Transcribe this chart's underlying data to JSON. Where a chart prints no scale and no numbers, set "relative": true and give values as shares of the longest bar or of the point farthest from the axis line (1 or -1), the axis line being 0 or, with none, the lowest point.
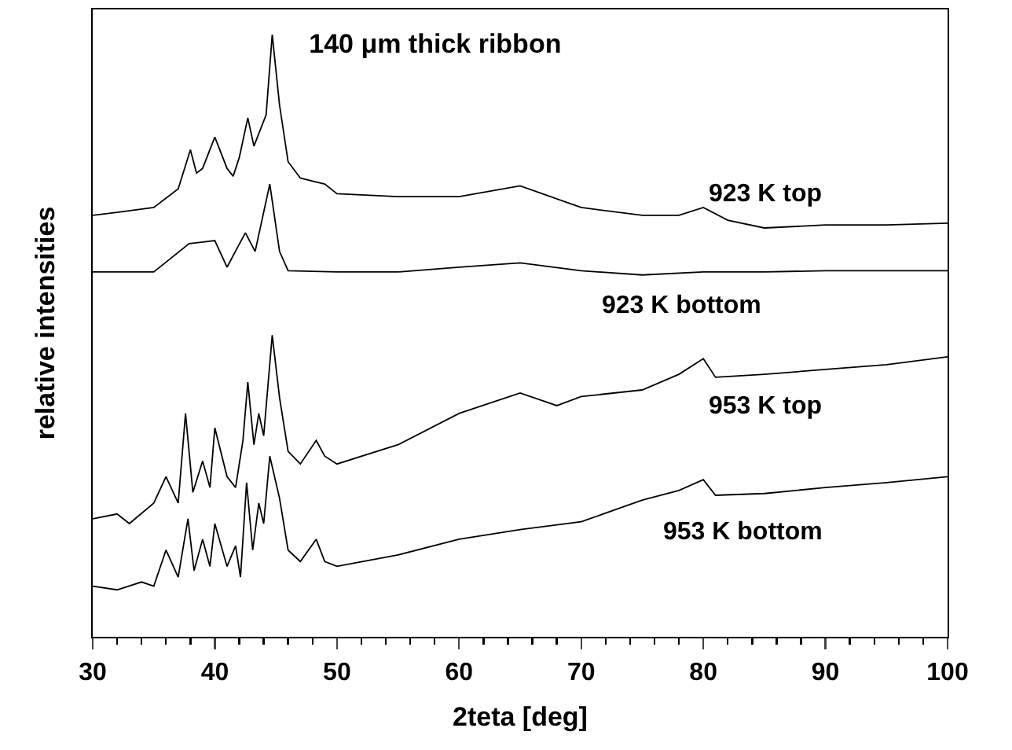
{
  "chart_data": {
    "type": "line",
    "title": "140 μm thick ribbon",
    "xlabel": "2teta [deg]",
    "ylabel": "relative intensities",
    "relative": true,
    "legend": false,
    "grid": false,
    "marker": "none",
    "line_style": "solid",
    "xlim": [
      30,
      100
    ],
    "xticks": [
      30,
      40,
      50,
      60,
      70,
      80,
      90,
      100
    ],
    "series": [
      {
        "name": "923 K top",
        "color": "#000000",
        "x": [
          30,
          32,
          35,
          37,
          38,
          38.5,
          39,
          40,
          41,
          41.5,
          42,
          42.7,
          43.2,
          43.7,
          44.2,
          44.7,
          45.3,
          46,
          47,
          48,
          49,
          50,
          55,
          60,
          65,
          70,
          75,
          78,
          80,
          82,
          85,
          90,
          95,
          100
        ],
        "values": [
          0.7,
          0.705,
          0.713,
          0.744,
          0.809,
          0.77,
          0.778,
          0.83,
          0.778,
          0.765,
          0.796,
          0.862,
          0.815,
          0.841,
          0.867,
          1.0,
          0.883,
          0.789,
          0.762,
          0.757,
          0.752,
          0.736,
          0.731,
          0.731,
          0.749,
          0.713,
          0.7,
          0.7,
          0.713,
          0.692,
          0.679,
          0.684,
          0.684,
          0.687
        ]
      },
      {
        "name": "923 K bottom",
        "color": "#000000",
        "x": [
          30,
          35,
          37.9,
          40,
          41,
          42.5,
          43.3,
          44.5,
          45.3,
          46,
          50,
          55,
          60,
          65,
          70,
          75,
          80,
          85,
          90,
          100
        ],
        "values": [
          0.606,
          0.606,
          0.653,
          0.658,
          0.614,
          0.671,
          0.64,
          0.752,
          0.64,
          0.608,
          0.606,
          0.606,
          0.614,
          0.621,
          0.608,
          0.601,
          0.606,
          0.606,
          0.608,
          0.608
        ]
      },
      {
        "name": "953 K top",
        "color": "#000000",
        "x": [
          30,
          32,
          33,
          35,
          36,
          37,
          37.6,
          38.2,
          39,
          39.6,
          40,
          41,
          41.7,
          42.3,
          42.7,
          43.2,
          43.6,
          44,
          44.7,
          45.3,
          46,
          47,
          48.3,
          49,
          50,
          55,
          60,
          65,
          68,
          70,
          75,
          78,
          80,
          81,
          85,
          90,
          95,
          100
        ],
        "values": [
          0.196,
          0.204,
          0.188,
          0.222,
          0.266,
          0.222,
          0.371,
          0.24,
          0.292,
          0.248,
          0.347,
          0.266,
          0.248,
          0.326,
          0.423,
          0.319,
          0.371,
          0.334,
          0.501,
          0.397,
          0.308,
          0.287,
          0.326,
          0.3,
          0.287,
          0.319,
          0.371,
          0.405,
          0.384,
          0.399,
          0.41,
          0.436,
          0.462,
          0.431,
          0.436,
          0.444,
          0.452,
          0.465
        ]
      },
      {
        "name": "953 K bottom",
        "color": "#000000",
        "x": [
          30,
          32,
          34,
          35,
          36,
          37,
          37.8,
          38.3,
          39,
          39.6,
          40,
          41,
          41.7,
          42.1,
          42.6,
          43.1,
          43.6,
          44,
          44.5,
          45.3,
          46,
          47,
          48.3,
          49,
          50,
          55,
          60,
          65,
          70,
          75,
          78,
          80,
          81,
          85,
          90,
          95,
          100
        ],
        "values": [
          0.084,
          0.078,
          0.091,
          0.084,
          0.144,
          0.099,
          0.196,
          0.11,
          0.162,
          0.117,
          0.188,
          0.117,
          0.151,
          0.099,
          0.256,
          0.144,
          0.222,
          0.188,
          0.3,
          0.23,
          0.144,
          0.125,
          0.162,
          0.125,
          0.117,
          0.136,
          0.162,
          0.178,
          0.191,
          0.227,
          0.243,
          0.261,
          0.235,
          0.238,
          0.248,
          0.256,
          0.266
        ]
      }
    ]
  }
}
